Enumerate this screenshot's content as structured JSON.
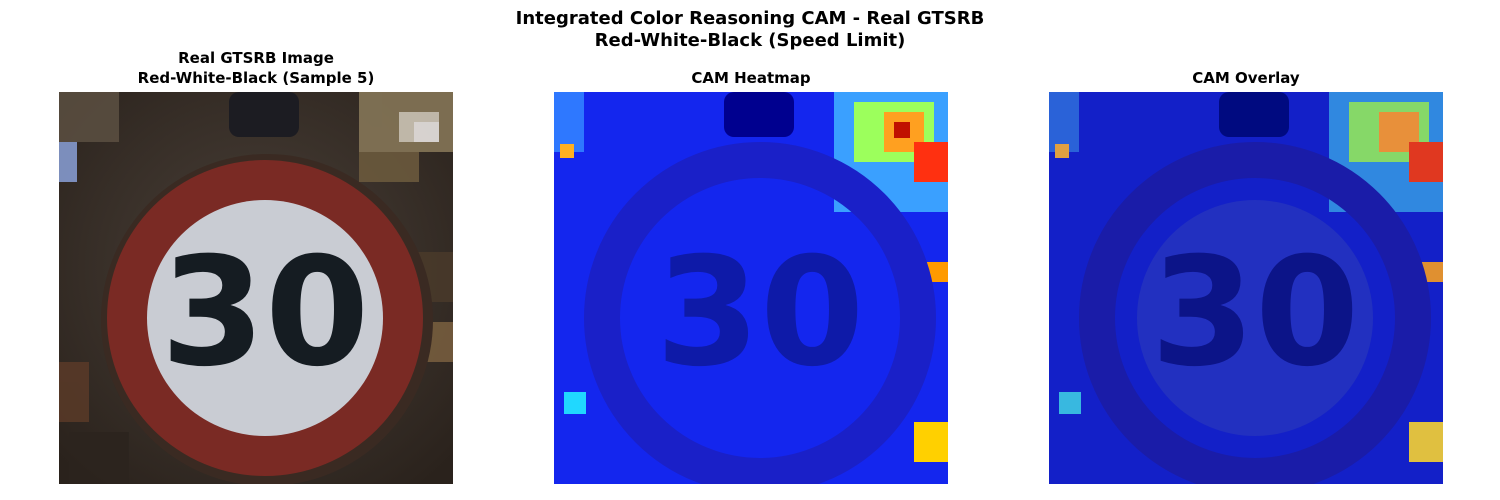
{
  "figure": {
    "title_line1": "Integrated Color Reasoning CAM - Real GTSRB",
    "title_line2": "Red-White-Black (Speed Limit)"
  },
  "panels": [
    {
      "title_line1": "Real GTSRB Image",
      "title_line2": "Red-White-Black (Sample 5)",
      "sign_text": "30"
    },
    {
      "title_line1": "",
      "title_line2": "CAM Heatmap",
      "sign_text": "30"
    },
    {
      "title_line1": "",
      "title_line2": "CAM Overlay",
      "sign_text": "30"
    }
  ],
  "colors": {
    "sign_red": "#7a2a24",
    "sign_white": "#c9ccd3",
    "digits": "#151c22",
    "background_dark": "#3a2e24",
    "cam_blue": "#1426ee",
    "cam_dark_blue": "#00008f"
  }
}
